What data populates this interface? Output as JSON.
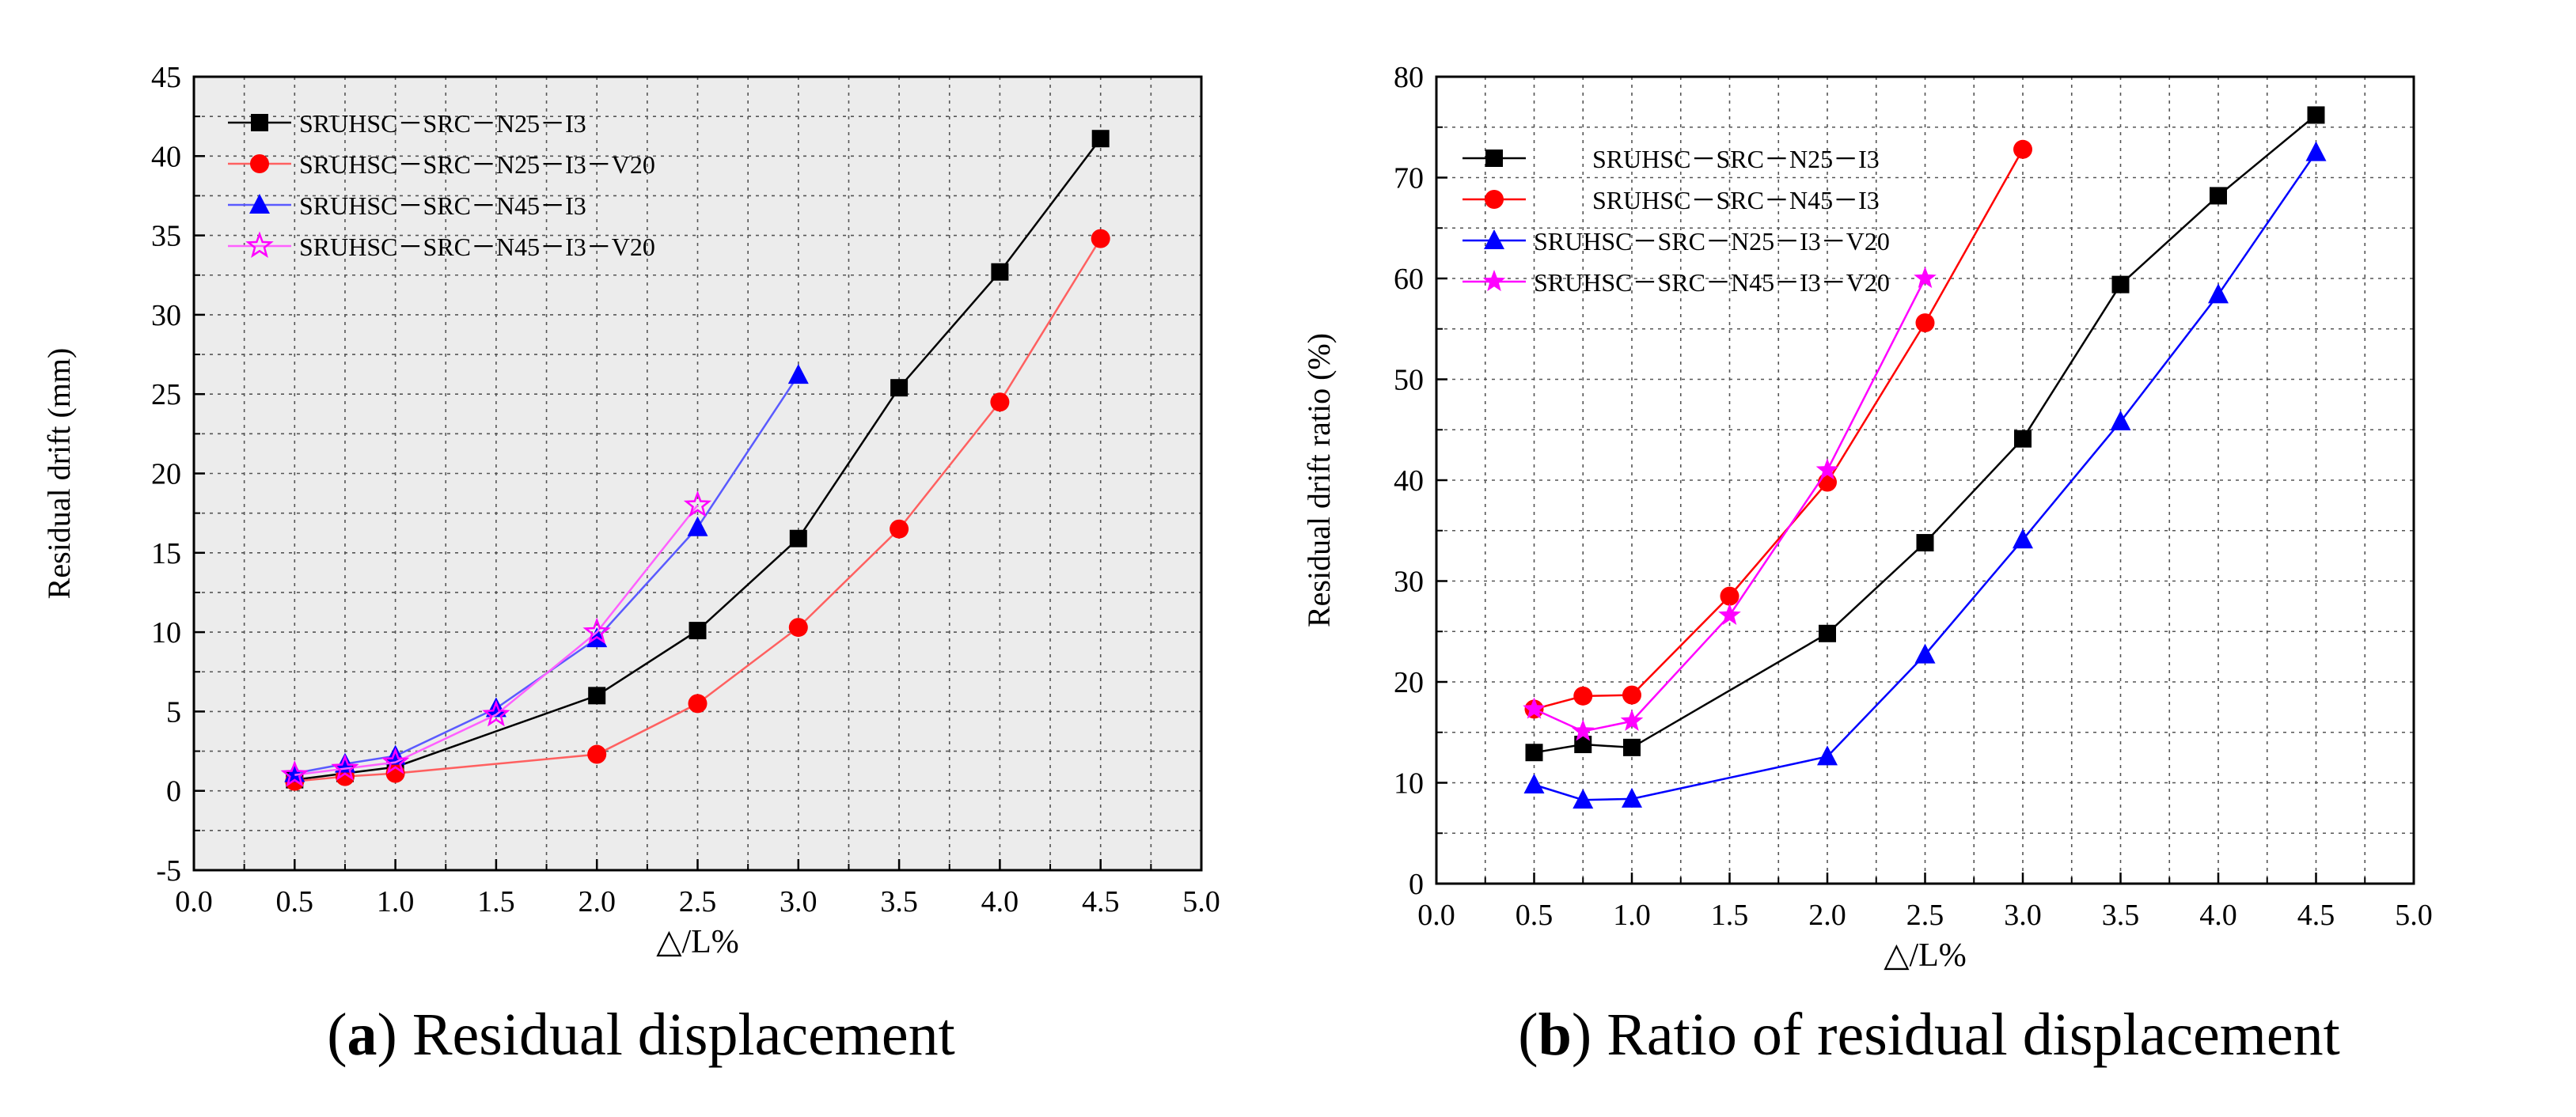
{
  "chart_data": [
    {
      "id": "a",
      "type": "line",
      "title": "",
      "xlabel": "△/L%",
      "ylabel": "Residual drift (mm)",
      "xlim": [
        0.0,
        5.0
      ],
      "ylim": [
        -5,
        45
      ],
      "xticks": [
        "0.0",
        "0.5",
        "1.0",
        "1.5",
        "2.0",
        "2.5",
        "3.0",
        "3.5",
        "4.0",
        "4.5",
        "5.0"
      ],
      "yticks": [
        "-5",
        "0",
        "5",
        "10",
        "15",
        "20",
        "25",
        "30",
        "35",
        "40",
        "45"
      ],
      "grid": true,
      "background": "#ececec",
      "legend_position": "top-left",
      "series": [
        {
          "name": "SRUHSC－SRC－N25－I3",
          "color": "#000000",
          "line_color": "#000000",
          "marker": "square",
          "x": [
            0.5,
            0.75,
            1.0,
            2.0,
            2.5,
            3.0,
            3.5,
            4.0,
            4.5
          ],
          "y": [
            0.7,
            1.1,
            1.5,
            6.0,
            10.1,
            15.9,
            25.4,
            32.7,
            41.1
          ]
        },
        {
          "name": "SRUHSC－SRC－N25－I3－V20",
          "color": "#ff0000",
          "line_color": "#ff6060",
          "marker": "circle",
          "x": [
            0.5,
            0.75,
            1.0,
            2.0,
            2.5,
            3.0,
            3.5,
            4.0,
            4.5
          ],
          "y": [
            0.6,
            0.9,
            1.1,
            2.3,
            5.5,
            10.3,
            16.5,
            24.5,
            34.8
          ]
        },
        {
          "name": "SRUHSC－SRC－N45－I3",
          "color": "#0000ff",
          "line_color": "#5a5aff",
          "marker": "triangle",
          "x": [
            0.5,
            0.75,
            1.0,
            1.5,
            2.0,
            2.5,
            3.0
          ],
          "y": [
            1.1,
            1.7,
            2.2,
            5.2,
            9.6,
            16.6,
            26.2
          ]
        },
        {
          "name": "SRUHSC－SRC－N45－I3－V20",
          "color": "#ff00ff",
          "line_color": "#ff60ff",
          "marker": "star-open",
          "x": [
            0.5,
            0.75,
            1.0,
            1.5,
            2.0,
            2.5
          ],
          "y": [
            1.0,
            1.4,
            1.8,
            4.8,
            10.0,
            18.0
          ]
        }
      ],
      "caption_letter": "a",
      "caption_text": " Residual displacement"
    },
    {
      "id": "b",
      "type": "line",
      "title": "",
      "xlabel": "△/L%",
      "ylabel": "Residual drift ratio (%)",
      "xlim": [
        0.0,
        5.0
      ],
      "ylim": [
        0,
        80
      ],
      "xticks": [
        "0.0",
        "0.5",
        "1.0",
        "1.5",
        "2.0",
        "2.5",
        "3.0",
        "3.5",
        "4.0",
        "4.5",
        "5.0"
      ],
      "yticks": [
        "0",
        "10",
        "20",
        "30",
        "40",
        "50",
        "60",
        "70",
        "80"
      ],
      "grid": true,
      "background": "#ffffff",
      "legend_position": "top-left",
      "series": [
        {
          "name": "SRUHSC－SRC－N25－I3",
          "color": "#000000",
          "line_color": "#000000",
          "marker": "square",
          "x": [
            0.5,
            0.75,
            1.0,
            2.0,
            2.5,
            3.0,
            3.5,
            4.0,
            4.5
          ],
          "y": [
            13.0,
            13.8,
            13.5,
            24.8,
            33.8,
            44.1,
            59.4,
            68.2,
            76.2
          ]
        },
        {
          "name": "SRUHSC－SRC－N45－I3",
          "color": "#ff0000",
          "line_color": "#ff0000",
          "marker": "circle",
          "x": [
            0.5,
            0.75,
            1.0,
            1.5,
            2.0,
            2.5,
            3.0
          ],
          "y": [
            17.3,
            18.6,
            18.7,
            28.5,
            39.8,
            55.6,
            72.8
          ]
        },
        {
          "name": "SRUHSC－SRC－N25－I3－V20",
          "color": "#0000ff",
          "line_color": "#0000ff",
          "marker": "triangle",
          "x": [
            0.5,
            0.75,
            1.0,
            2.0,
            2.5,
            3.0,
            3.5,
            4.0,
            4.5
          ],
          "y": [
            9.8,
            8.3,
            8.4,
            12.6,
            22.7,
            34.1,
            45.8,
            58.4,
            72.5
          ]
        },
        {
          "name": "SRUHSC－SRC－N45－I3－V20",
          "color": "#ff00ff",
          "line_color": "#ff00ff",
          "marker": "star",
          "x": [
            0.5,
            0.75,
            1.0,
            1.5,
            2.0,
            2.5
          ],
          "y": [
            17.3,
            15.1,
            16.1,
            26.6,
            41.0,
            60.0
          ]
        }
      ],
      "caption_letter": "b",
      "caption_text": " Ratio of residual displacement"
    }
  ]
}
